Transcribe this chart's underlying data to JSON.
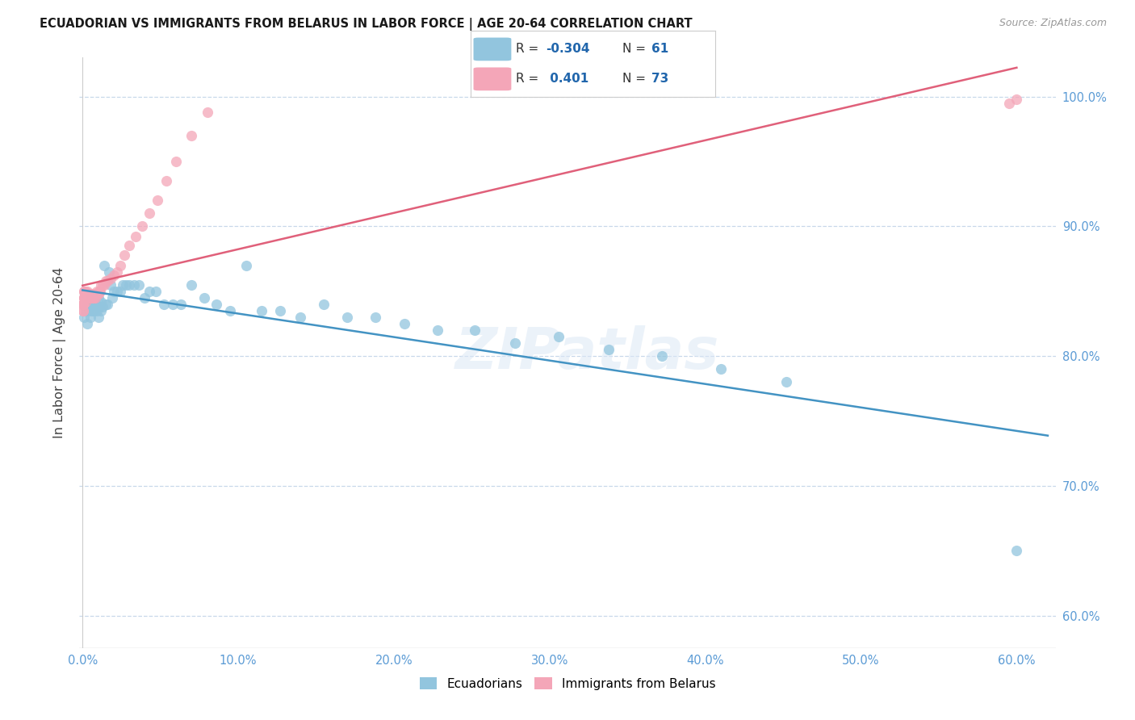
{
  "title": "ECUADORIAN VS IMMIGRANTS FROM BELARUS IN LABOR FORCE | AGE 20-64 CORRELATION CHART",
  "source": "Source: ZipAtlas.com",
  "ylabel": "In Labor Force | Age 20-64",
  "x_min": -0.002,
  "x_max": 0.625,
  "y_min": 0.575,
  "y_max": 1.03,
  "x_ticks": [
    0.0,
    0.1,
    0.2,
    0.3,
    0.4,
    0.5,
    0.6
  ],
  "x_tick_labels": [
    "0.0%",
    "10.0%",
    "20.0%",
    "30.0%",
    "40.0%",
    "50.0%",
    "60.0%"
  ],
  "y_ticks": [
    0.6,
    0.7,
    0.8,
    0.9,
    1.0
  ],
  "y_tick_labels": [
    "60.0%",
    "70.0%",
    "80.0%",
    "90.0%",
    "100.0%"
  ],
  "blue_color": "#92c5de",
  "pink_color": "#f4a6b8",
  "blue_line_color": "#4393c3",
  "pink_line_color": "#e0607a",
  "r_blue": "-0.304",
  "n_blue": "61",
  "r_pink": "0.401",
  "n_pink": "73",
  "watermark": "ZIPatlas",
  "legend_labels": [
    "Ecuadorians",
    "Immigrants from Belarus"
  ],
  "blue_scatter_x": [
    0.001,
    0.002,
    0.003,
    0.003,
    0.004,
    0.004,
    0.005,
    0.005,
    0.006,
    0.006,
    0.007,
    0.007,
    0.008,
    0.009,
    0.01,
    0.01,
    0.011,
    0.012,
    0.012,
    0.013,
    0.014,
    0.015,
    0.016,
    0.017,
    0.018,
    0.019,
    0.02,
    0.022,
    0.024,
    0.026,
    0.028,
    0.03,
    0.033,
    0.036,
    0.04,
    0.043,
    0.047,
    0.052,
    0.058,
    0.063,
    0.07,
    0.078,
    0.086,
    0.095,
    0.105,
    0.115,
    0.127,
    0.14,
    0.155,
    0.17,
    0.188,
    0.207,
    0.228,
    0.252,
    0.278,
    0.306,
    0.338,
    0.372,
    0.41,
    0.452,
    0.6
  ],
  "blue_scatter_y": [
    0.83,
    0.835,
    0.84,
    0.825,
    0.835,
    0.84,
    0.83,
    0.845,
    0.835,
    0.84,
    0.84,
    0.835,
    0.84,
    0.835,
    0.83,
    0.845,
    0.838,
    0.835,
    0.842,
    0.838,
    0.87,
    0.84,
    0.84,
    0.865,
    0.855,
    0.845,
    0.85,
    0.85,
    0.85,
    0.855,
    0.855,
    0.855,
    0.855,
    0.855,
    0.845,
    0.85,
    0.85,
    0.84,
    0.84,
    0.84,
    0.855,
    0.845,
    0.84,
    0.835,
    0.87,
    0.835,
    0.835,
    0.83,
    0.84,
    0.83,
    0.83,
    0.825,
    0.82,
    0.82,
    0.81,
    0.815,
    0.805,
    0.8,
    0.79,
    0.78,
    0.65
  ],
  "pink_scatter_x": [
    0.0002,
    0.0003,
    0.0004,
    0.0005,
    0.0006,
    0.0006,
    0.0007,
    0.0008,
    0.0009,
    0.001,
    0.0011,
    0.0012,
    0.0013,
    0.0014,
    0.0015,
    0.0016,
    0.0017,
    0.0018,
    0.0019,
    0.002,
    0.0022,
    0.0024,
    0.0026,
    0.0028,
    0.003,
    0.003,
    0.0032,
    0.0034,
    0.0036,
    0.004,
    0.0042,
    0.0045,
    0.0048,
    0.005,
    0.0052,
    0.0055,
    0.006,
    0.0062,
    0.0065,
    0.007,
    0.0072,
    0.0075,
    0.008,
    0.0082,
    0.0085,
    0.009,
    0.0092,
    0.0095,
    0.01,
    0.0105,
    0.011,
    0.0115,
    0.012,
    0.013,
    0.014,
    0.015,
    0.016,
    0.018,
    0.02,
    0.022,
    0.024,
    0.027,
    0.03,
    0.034,
    0.038,
    0.043,
    0.048,
    0.054,
    0.06,
    0.07,
    0.08,
    0.595,
    0.6
  ],
  "pink_scatter_y": [
    0.84,
    0.835,
    0.84,
    0.84,
    0.84,
    0.835,
    0.845,
    0.85,
    0.845,
    0.85,
    0.845,
    0.848,
    0.845,
    0.845,
    0.848,
    0.845,
    0.85,
    0.848,
    0.842,
    0.845,
    0.848,
    0.845,
    0.845,
    0.845,
    0.85,
    0.845,
    0.848,
    0.845,
    0.845,
    0.848,
    0.848,
    0.845,
    0.845,
    0.845,
    0.845,
    0.845,
    0.845,
    0.848,
    0.848,
    0.845,
    0.845,
    0.848,
    0.848,
    0.845,
    0.848,
    0.848,
    0.85,
    0.848,
    0.848,
    0.85,
    0.85,
    0.85,
    0.855,
    0.855,
    0.855,
    0.858,
    0.858,
    0.86,
    0.862,
    0.865,
    0.87,
    0.878,
    0.885,
    0.892,
    0.9,
    0.91,
    0.92,
    0.935,
    0.95,
    0.97,
    0.988,
    0.995,
    0.998
  ]
}
